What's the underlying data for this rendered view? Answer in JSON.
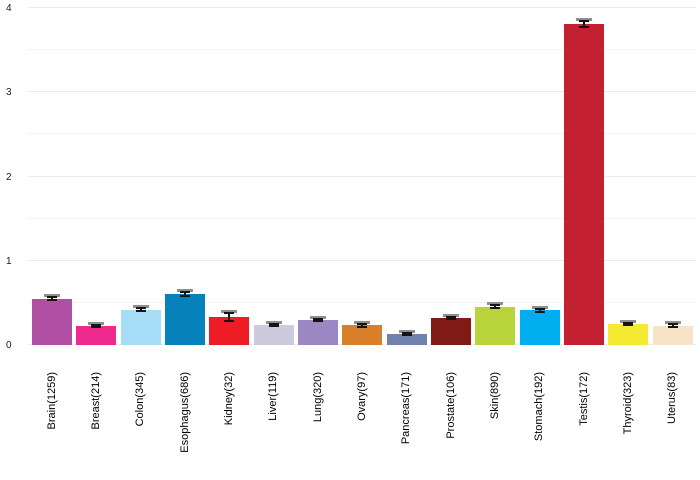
{
  "chart_data": {
    "type": "bar",
    "title": "",
    "xlabel": "",
    "ylabel": "",
    "ylim": [
      0,
      4
    ],
    "yticks": [
      0,
      1,
      2,
      3,
      4
    ],
    "gridline_step": 0.5,
    "grid": true,
    "legend": false,
    "error_bars": true,
    "categories": [
      "Brain(1259)",
      "Breast(214)",
      "Colon(345)",
      "Esophagus(686)",
      "Kidney(32)",
      "Liver(119)",
      "Lung(320)",
      "Ovary(97)",
      "Pancreas(171)",
      "Prostate(106)",
      "Skin(890)",
      "Stomach(192)",
      "Testis(172)",
      "Thyroid(323)",
      "Uterus(83)"
    ],
    "values": [
      0.55,
      0.23,
      0.42,
      0.61,
      0.33,
      0.24,
      0.3,
      0.235,
      0.13,
      0.315,
      0.455,
      0.41,
      3.81,
      0.25,
      0.23
    ],
    "errors": [
      0.02,
      0.012,
      0.018,
      0.025,
      0.05,
      0.015,
      0.012,
      0.02,
      0.006,
      0.012,
      0.018,
      0.022,
      0.04,
      0.01,
      0.022
    ],
    "colors": [
      "#b04fa3",
      "#ee2a8c",
      "#a6dcf5",
      "#0681ba",
      "#ee1c25",
      "#cccbdd",
      "#9c87c4",
      "#d97e2b",
      "#7081ac",
      "#7f1a16",
      "#b9d33b",
      "#00aeef",
      "#c32032",
      "#f5ea31",
      "#f9e3c7"
    ],
    "gridline_color_major": "#ececec",
    "gridline_color_minor": "#f3f3f3",
    "errorbar_color": "#141414",
    "errorbar_cap_color": "#8f8f8f",
    "tick_label_color": "#1a1a1a",
    "background_color": "#ffffff"
  }
}
